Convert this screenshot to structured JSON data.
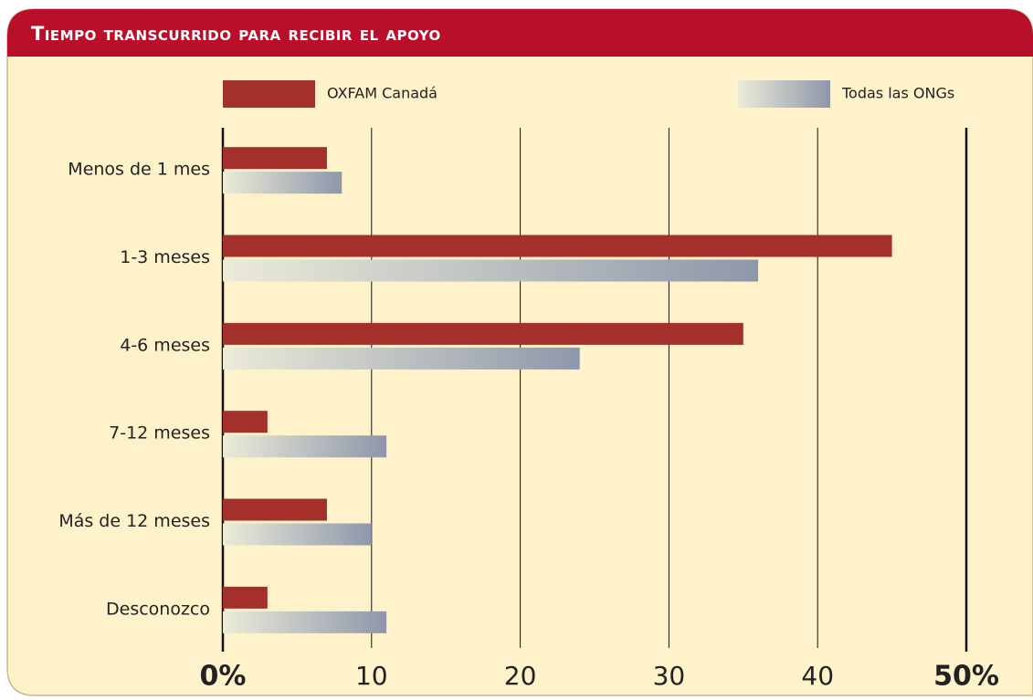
{
  "chart_data": {
    "type": "bar",
    "orientation": "horizontal",
    "title": "Tiempo transcurrido para recibir el apoyo",
    "categories": [
      "Menos de 1 mes",
      "1-3 meses",
      "4-6 meses",
      "7-12 meses",
      "Más de 12 meses",
      "Desconozco"
    ],
    "series": [
      {
        "name": "OXFAM Canadá",
        "color": "#a3302a",
        "values": [
          7,
          45,
          35,
          3,
          7,
          3
        ]
      },
      {
        "name": "Todas las ONGs",
        "color": "#8e97aa",
        "values": [
          8,
          36,
          24,
          11,
          10,
          11
        ]
      }
    ],
    "xlim": [
      0,
      50
    ],
    "xticks": [
      {
        "value": 0,
        "label": "0%"
      },
      10,
      20,
      30,
      40,
      {
        "value": 50,
        "label": "50%"
      }
    ],
    "grid": true
  }
}
